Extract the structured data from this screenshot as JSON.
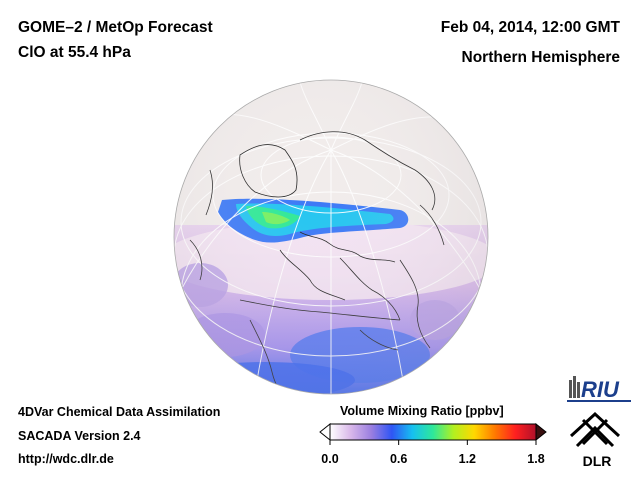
{
  "header": {
    "product": "GOME–2 / MetOp Forecast",
    "species": "ClO at 55.4 hPa",
    "datetime": "Feb 04, 2014, 12:00 GMT",
    "region": "Northern Hemisphere"
  },
  "footer": {
    "assimilation": "4DVar Chemical Data Assimilation",
    "version": "SACADA Version 2.4",
    "url": "http://wdc.dlr.de"
  },
  "colorbar": {
    "title": "Volume Mixing Ratio [ppbv]",
    "ticks": [
      "0.0",
      "0.6",
      "1.2",
      "1.8"
    ],
    "min": 0.0,
    "max": 1.8,
    "colors": [
      "#ffffff",
      "#d9b8ea",
      "#9b7fe0",
      "#2f55f5",
      "#16c0f0",
      "#2ee89a",
      "#b2f020",
      "#ffd800",
      "#ff7a00",
      "#ff2020",
      "#b0102a"
    ]
  },
  "map": {
    "projection": "orthographic",
    "background_color": "#f1eceb",
    "coastline_color": "#222222",
    "grid_color": "#ffffff"
  },
  "logos": {
    "riu": "RIU",
    "dlr": "DLR"
  }
}
